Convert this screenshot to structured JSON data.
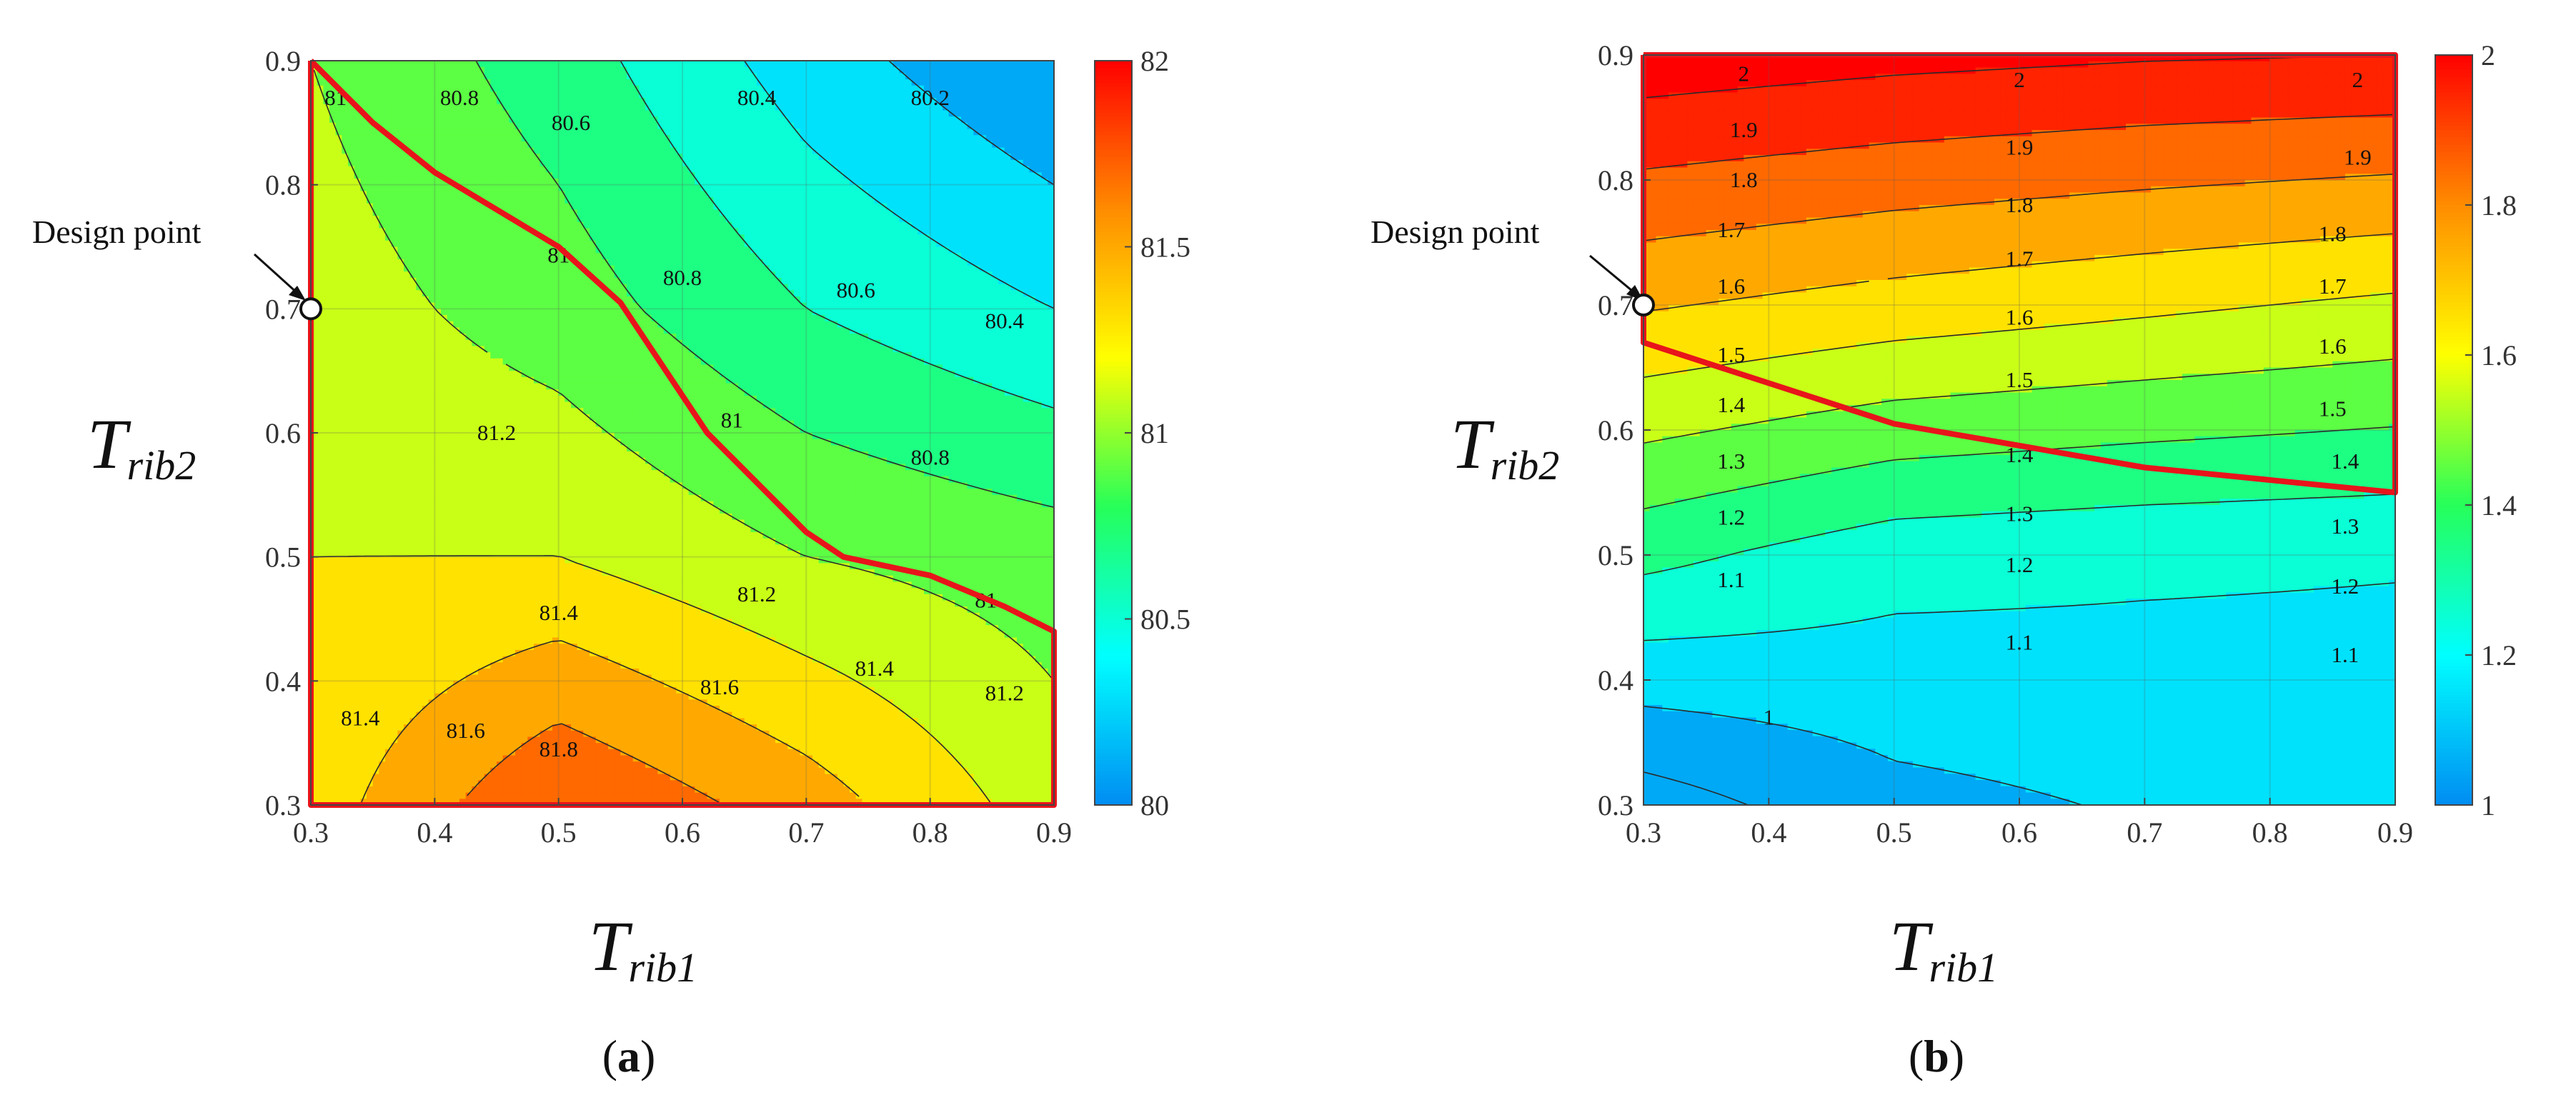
{
  "chart_data": [
    {
      "type": "contour",
      "panel_label": "a",
      "x": [
        0.3,
        0.5,
        0.7,
        0.9
      ],
      "y": [
        0.3,
        0.5,
        0.7,
        0.9
      ],
      "z": [
        [
          81.3,
          81.8,
          81.5,
          81.1
        ],
        [
          81.2,
          81.2,
          81.0,
          80.9
        ],
        [
          81.1,
          80.9,
          80.6,
          80.4
        ],
        [
          81.0,
          80.7,
          80.3,
          80.0
        ]
      ],
      "xlim": [
        0.3,
        0.9
      ],
      "ylim": [
        0.3,
        0.9
      ],
      "xticks": [
        "0.3",
        "0.4",
        "0.5",
        "0.6",
        "0.7",
        "0.8",
        "0.9"
      ],
      "yticks": [
        "0.3",
        "0.4",
        "0.5",
        "0.6",
        "0.7",
        "0.8",
        "0.9"
      ],
      "xlabel_main": "T",
      "xlabel_sub": "rib1",
      "ylabel_main": "T",
      "ylabel_sub": "rib2",
      "contour_levels": [
        80.2,
        80.4,
        80.6,
        80.8,
        81,
        81.2,
        81.4,
        81.6,
        81.8
      ],
      "contour_labels": [
        {
          "text": "81",
          "x": 0.32,
          "y": 0.87
        },
        {
          "text": "80.8",
          "x": 0.42,
          "y": 0.87
        },
        {
          "text": "80.6",
          "x": 0.51,
          "y": 0.85
        },
        {
          "text": "80.4",
          "x": 0.66,
          "y": 0.87
        },
        {
          "text": "80.2",
          "x": 0.8,
          "y": 0.87
        },
        {
          "text": "81",
          "x": 0.5,
          "y": 0.743
        },
        {
          "text": "80.8",
          "x": 0.6,
          "y": 0.725
        },
        {
          "text": "80.6",
          "x": 0.74,
          "y": 0.715
        },
        {
          "text": "80.4",
          "x": 0.86,
          "y": 0.69
        },
        {
          "text": "81.2",
          "x": 0.45,
          "y": 0.6
        },
        {
          "text": "81",
          "x": 0.64,
          "y": 0.61
        },
        {
          "text": "80.8",
          "x": 0.8,
          "y": 0.58
        },
        {
          "text": "81",
          "x": 0.845,
          "y": 0.465
        },
        {
          "text": "81.4",
          "x": 0.5,
          "y": 0.455
        },
        {
          "text": "81.2",
          "x": 0.66,
          "y": 0.47
        },
        {
          "text": "81.4",
          "x": 0.34,
          "y": 0.37
        },
        {
          "text": "81.6",
          "x": 0.425,
          "y": 0.36
        },
        {
          "text": "81.6",
          "x": 0.63,
          "y": 0.395
        },
        {
          "text": "81.4",
          "x": 0.755,
          "y": 0.41
        },
        {
          "text": "81.2",
          "x": 0.86,
          "y": 0.39
        },
        {
          "text": "81.8",
          "x": 0.5,
          "y": 0.345
        }
      ],
      "feasible_boundary": [
        [
          0.3,
          0.9
        ],
        [
          0.35,
          0.85
        ],
        [
          0.4,
          0.81
        ],
        [
          0.5,
          0.75
        ],
        [
          0.55,
          0.705
        ],
        [
          0.62,
          0.6
        ],
        [
          0.7,
          0.52
        ],
        [
          0.73,
          0.5
        ],
        [
          0.8,
          0.485
        ],
        [
          0.86,
          0.46
        ],
        [
          0.9,
          0.44
        ],
        [
          0.9,
          0.3
        ],
        [
          0.3,
          0.3
        ],
        [
          0.3,
          0.9
        ]
      ],
      "design_point": {
        "x": 0.3,
        "y": 0.7,
        "label": "Design point"
      },
      "colorbar": {
        "min": 80,
        "max": 82,
        "ticks": [
          "80",
          "80.5",
          "81",
          "81.5",
          "82"
        ]
      }
    },
    {
      "type": "contour",
      "panel_label": "b",
      "x": [
        0.3,
        0.5,
        0.7,
        0.9
      ],
      "y": [
        0.3,
        0.5,
        0.7,
        0.9
      ],
      "z": [
        [
          0.95,
          1.07,
          1.11,
          1.12
        ],
        [
          1.33,
          1.24,
          1.22,
          1.21
        ],
        [
          1.71,
          1.66,
          1.62,
          1.58
        ],
        [
          2.06,
          2.03,
          2.01,
          2.0
        ]
      ],
      "xlim": [
        0.3,
        0.9
      ],
      "ylim": [
        0.3,
        0.9
      ],
      "xticks": [
        "0.3",
        "0.4",
        "0.5",
        "0.6",
        "0.7",
        "0.8",
        "0.9"
      ],
      "yticks": [
        "0.3",
        "0.4",
        "0.5",
        "0.6",
        "0.7",
        "0.8",
        "0.9"
      ],
      "xlabel_main": "T",
      "xlabel_sub": "rib1",
      "ylabel_main": "T",
      "ylabel_sub": "rib2",
      "contour_levels": [
        1,
        1.1,
        1.2,
        1.3,
        1.4,
        1.5,
        1.6,
        1.7,
        1.8,
        1.9,
        2
      ],
      "contour_labels": [
        {
          "text": "2",
          "x": 0.38,
          "y": 0.885
        },
        {
          "text": "2",
          "x": 0.6,
          "y": 0.88
        },
        {
          "text": "2",
          "x": 0.87,
          "y": 0.88
        },
        {
          "text": "1.9",
          "x": 0.38,
          "y": 0.84
        },
        {
          "text": "1.9",
          "x": 0.6,
          "y": 0.826
        },
        {
          "text": "1.9",
          "x": 0.87,
          "y": 0.818
        },
        {
          "text": "1.8",
          "x": 0.38,
          "y": 0.8
        },
        {
          "text": "1.8",
          "x": 0.6,
          "y": 0.78
        },
        {
          "text": "1.8",
          "x": 0.85,
          "y": 0.757
        },
        {
          "text": "1.7",
          "x": 0.37,
          "y": 0.76
        },
        {
          "text": "1.7",
          "x": 0.6,
          "y": 0.737
        },
        {
          "text": "1.7",
          "x": 0.85,
          "y": 0.715
        },
        {
          "text": "1.6",
          "x": 0.37,
          "y": 0.715
        },
        {
          "text": "1.6",
          "x": 0.6,
          "y": 0.69
        },
        {
          "text": "1.6",
          "x": 0.85,
          "y": 0.667
        },
        {
          "text": "1.5",
          "x": 0.37,
          "y": 0.66
        },
        {
          "text": "1.5",
          "x": 0.6,
          "y": 0.64
        },
        {
          "text": "1.5",
          "x": 0.85,
          "y": 0.617
        },
        {
          "text": "1.4",
          "x": 0.37,
          "y": 0.62
        },
        {
          "text": "1.4",
          "x": 0.6,
          "y": 0.58
        },
        {
          "text": "1.4",
          "x": 0.86,
          "y": 0.575
        },
        {
          "text": "1.3",
          "x": 0.37,
          "y": 0.575
        },
        {
          "text": "1.3",
          "x": 0.6,
          "y": 0.533
        },
        {
          "text": "1.3",
          "x": 0.86,
          "y": 0.523
        },
        {
          "text": "1.2",
          "x": 0.37,
          "y": 0.53
        },
        {
          "text": "1.2",
          "x": 0.6,
          "y": 0.492
        },
        {
          "text": "1.2",
          "x": 0.86,
          "y": 0.475
        },
        {
          "text": "1.1",
          "x": 0.37,
          "y": 0.48
        },
        {
          "text": "1.1",
          "x": 0.6,
          "y": 0.43
        },
        {
          "text": "1.1",
          "x": 0.86,
          "y": 0.42
        },
        {
          "text": "1",
          "x": 0.4,
          "y": 0.37
        }
      ],
      "feasible_boundary": [
        [
          0.3,
          0.9
        ],
        [
          0.9,
          0.9
        ],
        [
          0.9,
          0.55
        ],
        [
          0.7,
          0.57
        ],
        [
          0.5,
          0.605
        ],
        [
          0.3,
          0.67
        ],
        [
          0.3,
          0.9
        ]
      ],
      "design_point": {
        "x": 0.3,
        "y": 0.7,
        "label": "Design point"
      },
      "colorbar": {
        "min": 1,
        "max": 2,
        "ticks": [
          "1",
          "1.2",
          "1.4",
          "1.6",
          "1.8",
          "2"
        ]
      }
    }
  ]
}
